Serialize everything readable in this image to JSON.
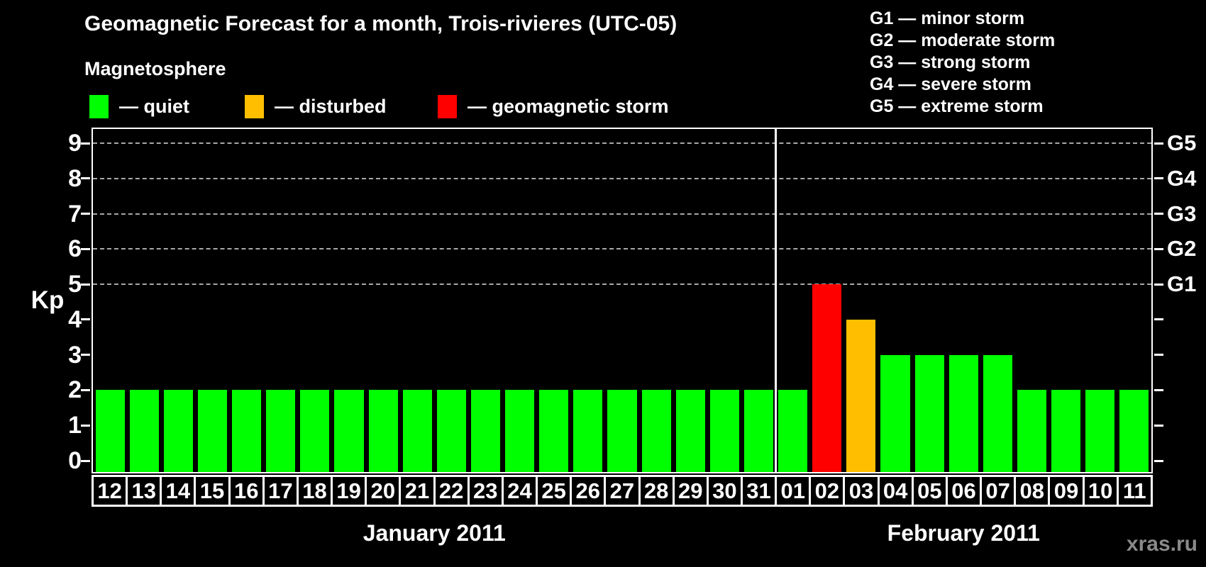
{
  "header": {
    "title": "Geomagnetic Forecast for a month, Trois-rivieres (UTC-05)",
    "legend_title": "Magnetosphere",
    "legend_items": [
      {
        "state": "quiet",
        "label": "— quiet",
        "color": "#00ff00"
      },
      {
        "state": "disturbed",
        "label": "— disturbed",
        "color": "#ffbf00"
      },
      {
        "state": "storm",
        "label": "— geomagnetic storm",
        "color": "#ff0000"
      }
    ],
    "g_scale_legend": [
      "G1 — minor storm",
      "G2 — moderate storm",
      "G3 — strong storm",
      "G4 — severe storm",
      "G5 — extreme storm"
    ]
  },
  "chart_data": {
    "type": "bar",
    "title": "Geomagnetic Forecast for a month, Trois-rivieres (UTC-05)",
    "ylabel": "Kp",
    "ylim": [
      0,
      9
    ],
    "y_ticks": [
      0,
      1,
      2,
      3,
      4,
      5,
      6,
      7,
      8,
      9
    ],
    "gridlines_at": [
      5,
      6,
      7,
      8,
      9
    ],
    "grid": "dashed-horizontal",
    "legend_position": "top-left",
    "right_axis_ticks": [
      {
        "kp": 5,
        "label": "G1"
      },
      {
        "kp": 6,
        "label": "G2"
      },
      {
        "kp": 7,
        "label": "G3"
      },
      {
        "kp": 8,
        "label": "G4"
      },
      {
        "kp": 9,
        "label": "G5"
      }
    ],
    "state_colors": {
      "quiet": "#00ff00",
      "disturbed": "#ffbf00",
      "storm": "#ff0000"
    },
    "months": [
      {
        "label": "January 2011",
        "days": [
          {
            "day": "12",
            "kp": 2,
            "state": "quiet"
          },
          {
            "day": "13",
            "kp": 2,
            "state": "quiet"
          },
          {
            "day": "14",
            "kp": 2,
            "state": "quiet"
          },
          {
            "day": "15",
            "kp": 2,
            "state": "quiet"
          },
          {
            "day": "16",
            "kp": 2,
            "state": "quiet"
          },
          {
            "day": "17",
            "kp": 2,
            "state": "quiet"
          },
          {
            "day": "18",
            "kp": 2,
            "state": "quiet"
          },
          {
            "day": "19",
            "kp": 2,
            "state": "quiet"
          },
          {
            "day": "20",
            "kp": 2,
            "state": "quiet"
          },
          {
            "day": "21",
            "kp": 2,
            "state": "quiet"
          },
          {
            "day": "22",
            "kp": 2,
            "state": "quiet"
          },
          {
            "day": "23",
            "kp": 2,
            "state": "quiet"
          },
          {
            "day": "24",
            "kp": 2,
            "state": "quiet"
          },
          {
            "day": "25",
            "kp": 2,
            "state": "quiet"
          },
          {
            "day": "26",
            "kp": 2,
            "state": "quiet"
          },
          {
            "day": "27",
            "kp": 2,
            "state": "quiet"
          },
          {
            "day": "28",
            "kp": 2,
            "state": "quiet"
          },
          {
            "day": "29",
            "kp": 2,
            "state": "quiet"
          },
          {
            "day": "30",
            "kp": 2,
            "state": "quiet"
          },
          {
            "day": "31",
            "kp": 2,
            "state": "quiet"
          }
        ]
      },
      {
        "label": "February 2011",
        "days": [
          {
            "day": "01",
            "kp": 2,
            "state": "quiet"
          },
          {
            "day": "02",
            "kp": 5,
            "state": "storm"
          },
          {
            "day": "03",
            "kp": 4,
            "state": "disturbed"
          },
          {
            "day": "04",
            "kp": 3,
            "state": "quiet"
          },
          {
            "day": "05",
            "kp": 3,
            "state": "quiet"
          },
          {
            "day": "06",
            "kp": 3,
            "state": "quiet"
          },
          {
            "day": "07",
            "kp": 3,
            "state": "quiet"
          },
          {
            "day": "08",
            "kp": 2,
            "state": "quiet"
          },
          {
            "day": "09",
            "kp": 2,
            "state": "quiet"
          },
          {
            "day": "10",
            "kp": 2,
            "state": "quiet"
          },
          {
            "day": "11",
            "kp": 2,
            "state": "quiet"
          }
        ]
      }
    ]
  },
  "watermark": "xras.ru"
}
